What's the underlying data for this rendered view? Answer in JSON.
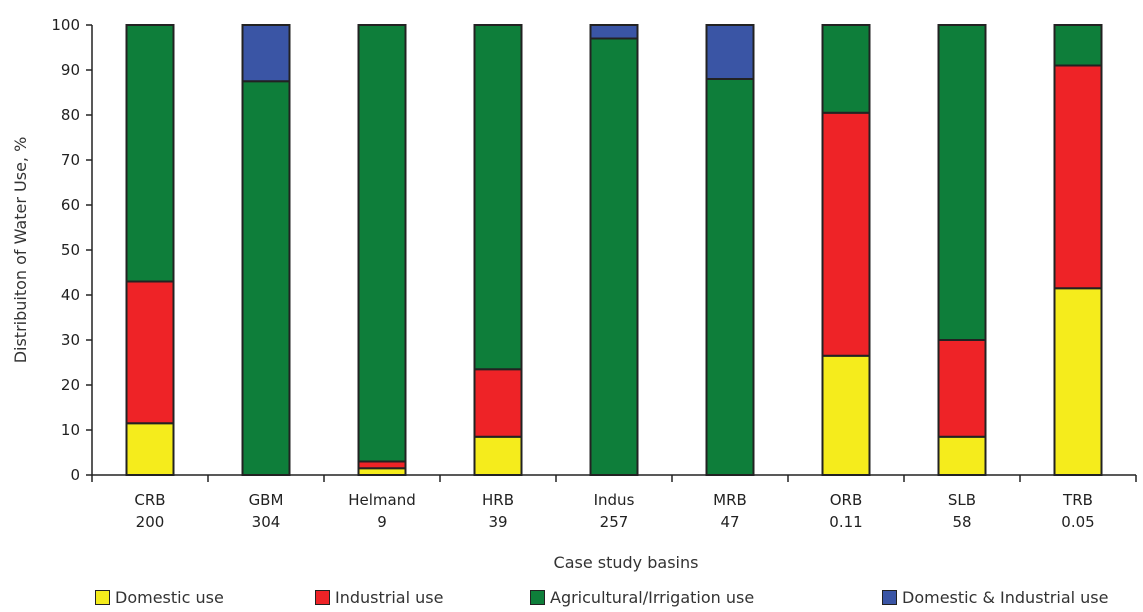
{
  "chart_data": {
    "type": "bar",
    "stacked": true,
    "xlabel": "Case study basins",
    "ylabel": "Distribuiton of Water Use, %",
    "ylim": [
      0,
      100
    ],
    "yticks": [
      0,
      10,
      20,
      30,
      40,
      50,
      60,
      70,
      80,
      90,
      100
    ],
    "categories": [
      "CRB",
      "GBM",
      "Helmand",
      "HRB",
      "Indus",
      "MRB",
      "ORB",
      "SLB",
      "TRB"
    ],
    "category_sublabels": [
      "200",
      "304",
      "9",
      "39",
      "257",
      "47",
      "0.11",
      "58",
      "0.05"
    ],
    "series": [
      {
        "name": "Domestic use",
        "color": "#f5ec1c",
        "values": [
          11.5,
          0,
          1.5,
          8.5,
          0,
          0,
          26.5,
          8.5,
          41.5
        ]
      },
      {
        "name": "Industrial use",
        "color": "#ee2327",
        "values": [
          31.5,
          0,
          1.5,
          15,
          0,
          0,
          54,
          21.5,
          49.5
        ]
      },
      {
        "name": "Agricultural/Irrigation use",
        "color": "#0e7e3a",
        "values": [
          57,
          87.5,
          97,
          76.5,
          97,
          88,
          19.5,
          70,
          9
        ]
      },
      {
        "name": "Domestic & Industrial use",
        "color": "#3a55a5",
        "values": [
          0,
          12.5,
          0,
          0,
          3,
          12,
          0,
          0,
          0
        ]
      }
    ],
    "legend_position": "bottom",
    "grid": false
  }
}
